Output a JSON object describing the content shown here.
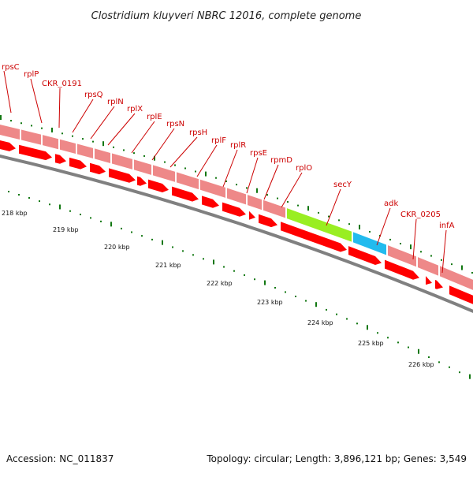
{
  "title": "Clostridium kluyveri NBRC 12016, complete genome",
  "footer": {
    "accession": "Accession: NC_011837",
    "summary": "Topology: circular; Length: 3,896,121 bp; Genes: 3,549"
  },
  "colors": {
    "gene_red": "#ff0000",
    "gene_light": "#ee8888",
    "highlight_green": "#99ee22",
    "highlight_blue": "#22bbee",
    "backbone": "#888888",
    "tick_green": "#117711",
    "label_red": "#cc0000"
  },
  "gene_labels": [
    "rpsC",
    "rplP",
    "CKR_0191",
    "rpsQ",
    "rplN",
    "rplX",
    "rplE",
    "rpsN",
    "rpsH",
    "rplF",
    "rplR",
    "rpsE",
    "rpmD",
    "rplO",
    "secY",
    "adk",
    "CKR_0205",
    "infA"
  ],
  "kbp_labels": [
    "218 kbp",
    "219 kbp",
    "220 kbp",
    "221 kbp",
    "222 kbp",
    "223 kbp",
    "224 kbp",
    "225 kbp",
    "226 kbp"
  ]
}
